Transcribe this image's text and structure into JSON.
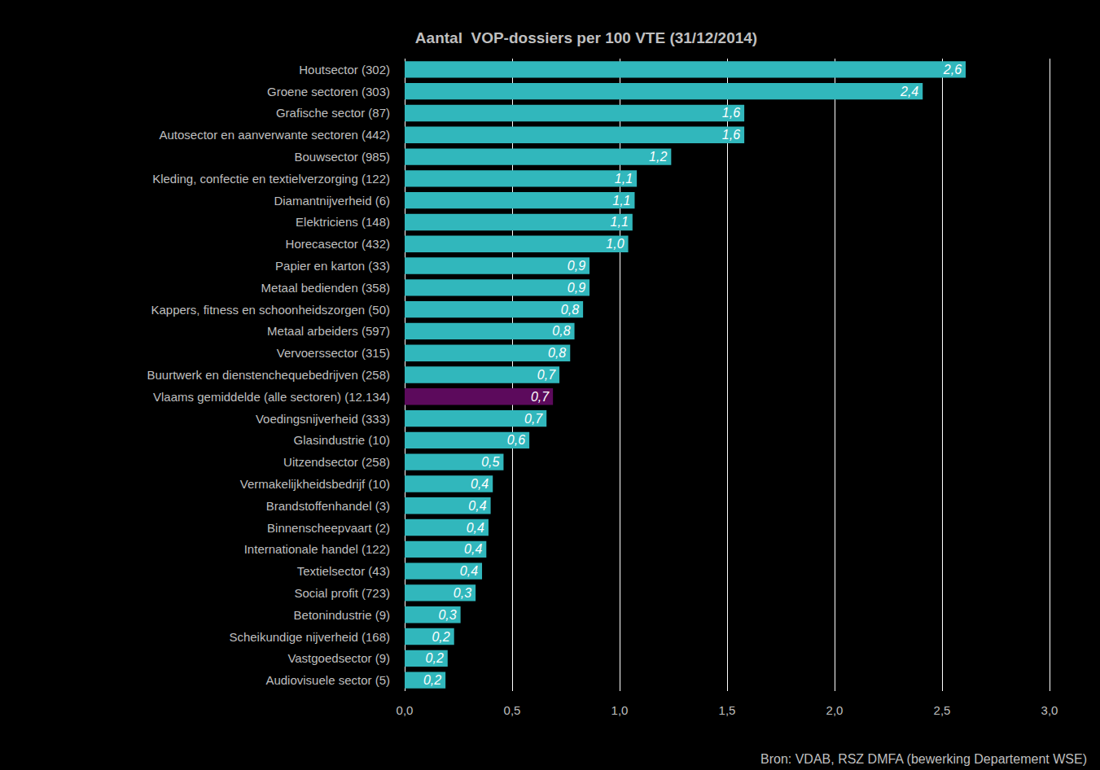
{
  "chart_data": {
    "type": "bar",
    "orientation": "horizontal",
    "title": "Aantal  VOP-dossiers per 100 VTE (31/12/2014)",
    "annotations": [
      "Bron: VDAB, RSZ DMFA (bewerking Departement WSE)"
    ],
    "categories": [
      "Houtsector (302)",
      "Groene sectoren (303)",
      "Grafische sector (87)",
      "Autosector en aanverwante sectoren (442)",
      "Bouwsector (985)",
      "Kleding, confectie en textielverzorging (122)",
      "Diamantnijverheid (6)",
      "Elektriciens (148)",
      "Horecasector (432)",
      "Papier en karton (33)",
      "Metaal bedienden (358)",
      "Kappers, fitness en schoonheidszorgen (50)",
      "Metaal arbeiders (597)",
      "Vervoerssector (315)",
      "Buurtwerk en dienstenchequebedrijven (258)",
      "Vlaams gemiddelde (alle sectoren) (12.134)",
      "Voedingsnijverheid (333)",
      "Glasindustrie (10)",
      "Uitzendsector (258)",
      "Vermakelijkheidsbedrijf (10)",
      "Brandstoffenhandel (3)",
      "Binnenscheepvaart (2)",
      "Internationale handel (122)",
      "Textielsector (43)",
      "Social profit (723)",
      "Betonindustrie (9)",
      "Scheikundige nijverheid (168)",
      "Vastgoedsector (9)",
      "Audiovisuele sector (5)"
    ],
    "values": [
      2.61,
      2.41,
      1.58,
      1.58,
      1.24,
      1.08,
      1.07,
      1.06,
      1.04,
      0.86,
      0.86,
      0.83,
      0.79,
      0.77,
      0.72,
      0.69,
      0.66,
      0.58,
      0.46,
      0.41,
      0.4,
      0.39,
      0.38,
      0.36,
      0.33,
      0.26,
      0.23,
      0.2,
      0.19
    ],
    "value_labels": [
      "2,6",
      "2,4",
      "1,6",
      "1,6",
      "1,2",
      "1,1",
      "1,1",
      "1,1",
      "1,0",
      "0,9",
      "0,9",
      "0,8",
      "0,8",
      "0,8",
      "0,7",
      "0,7",
      "0,7",
      "0,6",
      "0,5",
      "0,4",
      "0,4",
      "0,4",
      "0,4",
      "0,4",
      "0,3",
      "0,3",
      "0,2",
      "0,2",
      "0,2"
    ],
    "colors": [
      "#31b7bc",
      "#31b7bc",
      "#31b7bc",
      "#31b7bc",
      "#31b7bc",
      "#31b7bc",
      "#31b7bc",
      "#31b7bc",
      "#31b7bc",
      "#31b7bc",
      "#31b7bc",
      "#31b7bc",
      "#31b7bc",
      "#31b7bc",
      "#31b7bc",
      "#5c0a5c",
      "#31b7bc",
      "#31b7bc",
      "#31b7bc",
      "#31b7bc",
      "#31b7bc",
      "#31b7bc",
      "#31b7bc",
      "#31b7bc",
      "#31b7bc",
      "#31b7bc",
      "#31b7bc",
      "#31b7bc",
      "#31b7bc"
    ],
    "xlim": [
      0,
      3
    ],
    "xticks": [
      {
        "value": 0,
        "label": "0,0"
      },
      {
        "value": 0.5,
        "label": "0,5"
      },
      {
        "value": 1,
        "label": "1,0"
      },
      {
        "value": 1.5,
        "label": "1,5"
      },
      {
        "value": 2,
        "label": "2,0"
      },
      {
        "value": 2.5,
        "label": "2,5"
      },
      {
        "value": 3,
        "label": "3,0"
      }
    ],
    "grid": true,
    "data_labels": true
  }
}
